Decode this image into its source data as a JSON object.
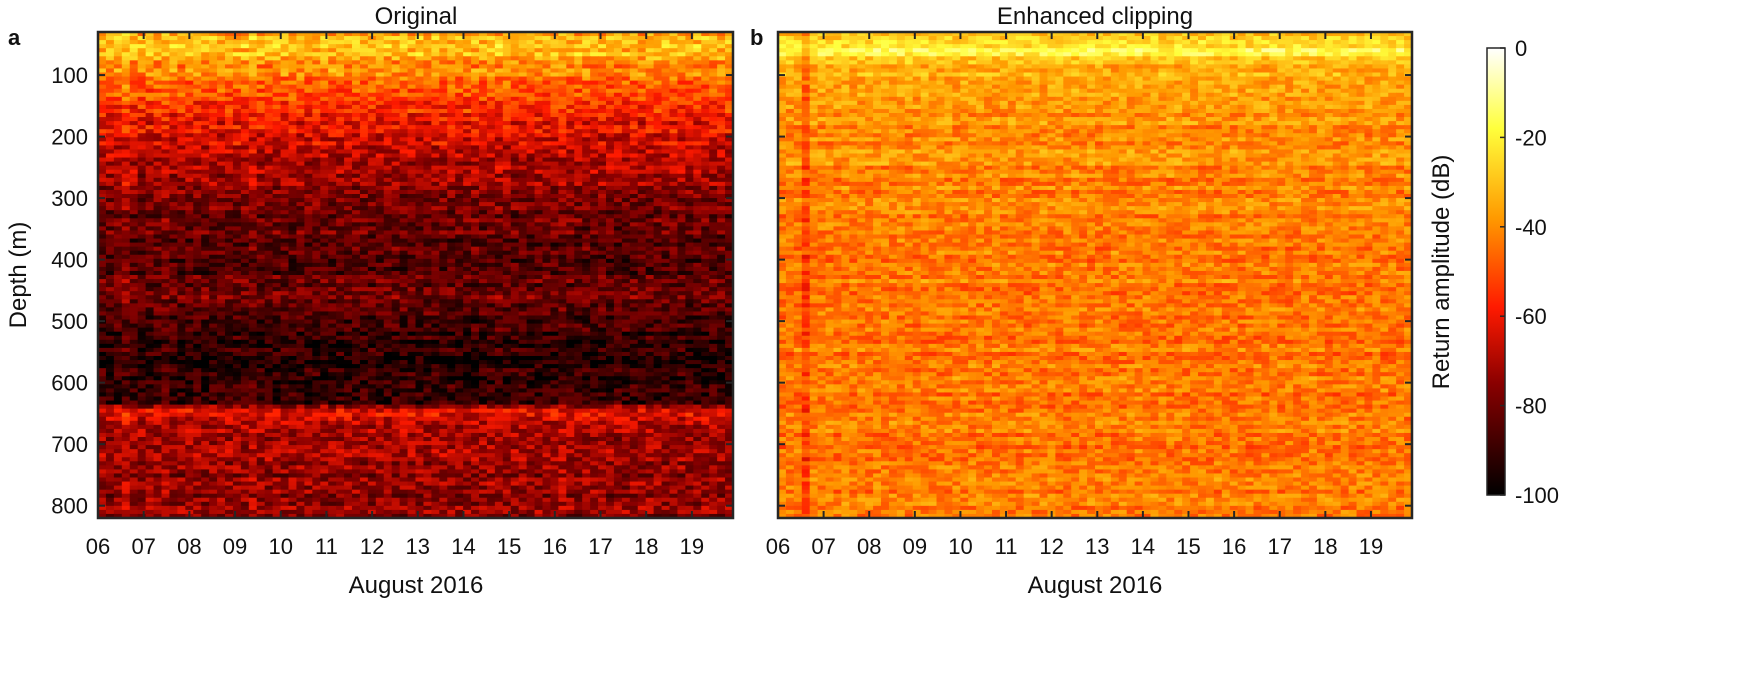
{
  "chart_data": [
    {
      "panel_label": "a",
      "title": "Original",
      "type": "heatmap",
      "xlabel": "August 2016",
      "ylabel": "Depth (m)",
      "x_ticks": [
        "06",
        "07",
        "08",
        "09",
        "10",
        "11",
        "12",
        "13",
        "14",
        "15",
        "16",
        "17",
        "18",
        "19"
      ],
      "x_range": [
        "06",
        "19.9"
      ],
      "y_ticks": [
        100,
        200,
        300,
        400,
        500,
        600,
        700,
        800
      ],
      "ylim": [
        30,
        820
      ],
      "y_reversed": true,
      "depth_profile_db": [
        {
          "depth": 30,
          "db": -36
        },
        {
          "depth": 60,
          "db": -30
        },
        {
          "depth": 100,
          "db": -44
        },
        {
          "depth": 150,
          "db": -56
        },
        {
          "depth": 200,
          "db": -64
        },
        {
          "depth": 250,
          "db": -70
        },
        {
          "depth": 300,
          "db": -78
        },
        {
          "depth": 350,
          "db": -83
        },
        {
          "depth": 400,
          "db": -85
        },
        {
          "depth": 460,
          "db": -80
        },
        {
          "depth": 500,
          "db": -89
        },
        {
          "depth": 550,
          "db": -93
        },
        {
          "depth": 600,
          "db": -91
        },
        {
          "depth": 635,
          "db": -88
        },
        {
          "depth": 645,
          "db": -60
        },
        {
          "depth": 660,
          "db": -68
        },
        {
          "depth": 700,
          "db": -72
        },
        {
          "depth": 750,
          "db": -75
        },
        {
          "depth": 820,
          "db": -76
        }
      ],
      "vertical_streaks": [
        {
          "date": 6.55,
          "db_offset": 12
        },
        {
          "date": 7.5,
          "db_offset": 4
        },
        {
          "date": 9.35,
          "db_offset": 5
        },
        {
          "date": 14.7,
          "db_offset": 4
        },
        {
          "date": 16.2,
          "db_offset": 3
        }
      ]
    },
    {
      "panel_label": "b",
      "title": "Enhanced clipping",
      "type": "heatmap",
      "xlabel": "August 2016",
      "ylabel": "",
      "x_ticks": [
        "06",
        "07",
        "08",
        "09",
        "10",
        "11",
        "12",
        "13",
        "14",
        "15",
        "16",
        "17",
        "18",
        "19"
      ],
      "x_range": [
        "06",
        "19.9"
      ],
      "ylim": [
        30,
        820
      ],
      "y_reversed": true,
      "depth_profile_db": [
        {
          "depth": 30,
          "db": -30
        },
        {
          "depth": 60,
          "db": -18
        },
        {
          "depth": 80,
          "db": -32
        },
        {
          "depth": 150,
          "db": -38
        },
        {
          "depth": 300,
          "db": -42
        },
        {
          "depth": 500,
          "db": -43
        },
        {
          "depth": 700,
          "db": -44
        },
        {
          "depth": 820,
          "db": -42
        }
      ],
      "vertical_streaks": [
        {
          "date": 6.6,
          "db_offset": -10
        }
      ]
    }
  ],
  "colorbar": {
    "label": "Return amplitude (dB)",
    "ticks": [
      0,
      -20,
      -40,
      -60,
      -80,
      -100
    ],
    "range": [
      -100,
      0
    ],
    "colormap": "hot",
    "colors": [
      "#000000",
      "#e60000",
      "#ff9f00",
      "#ffff3c",
      "#ffffff"
    ]
  }
}
